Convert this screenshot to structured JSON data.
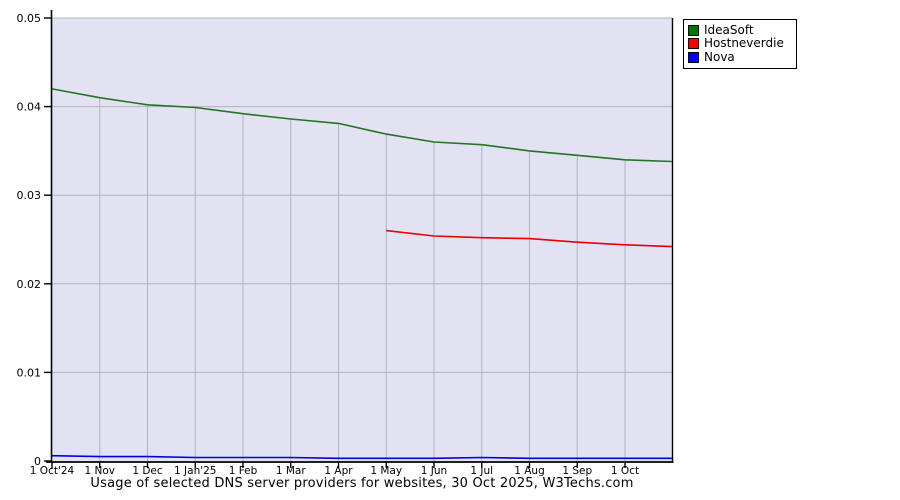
{
  "chart_data": {
    "type": "line",
    "title": "Usage of selected DNS server providers for websites, 30 Oct 2025, W3Techs.com",
    "xlabel": "",
    "ylabel": "",
    "ylim": [
      0,
      0.05
    ],
    "x_month_span": 12.98,
    "grid": true,
    "legend_position": "top-right",
    "colors": {
      "plot_bg": "#e2e2f3",
      "gridline": "#b2b2bc",
      "axis": "#000000"
    },
    "y_ticks": [
      0,
      0.01,
      0.02,
      0.03,
      0.04,
      0.05
    ],
    "y_tick_labels": [
      "0",
      "0.01",
      "0.02",
      "0.03",
      "0.04",
      "0.05"
    ],
    "x_tick_labels": [
      "1 Oct'24",
      "1 Nov",
      "1 Dec",
      "1 Jan'25",
      "1 Feb",
      "1 Mar",
      "1 Apr",
      "1 May",
      "1 Jun",
      "1 Jul",
      "1 Aug",
      "1 Sep",
      "1 Oct"
    ],
    "series": [
      {
        "name": "IdeaSoft",
        "color": "#267326",
        "swatch": "#007700",
        "x": [
          0,
          1,
          2,
          3,
          4,
          5,
          6,
          7,
          8,
          9,
          10,
          11,
          12,
          12.98
        ],
        "values": [
          0.042,
          0.041,
          0.0402,
          0.0399,
          0.0392,
          0.0386,
          0.0381,
          0.0369,
          0.036,
          0.0357,
          0.035,
          0.0345,
          0.034,
          0.0338
        ]
      },
      {
        "name": "Hostneverdie",
        "color": "#e80000",
        "swatch": "#ff0000",
        "x": [
          7,
          8,
          9,
          10,
          11,
          12,
          12.98
        ],
        "values": [
          0.026,
          0.0254,
          0.0252,
          0.0251,
          0.0247,
          0.0244,
          0.0242
        ]
      },
      {
        "name": "Nova",
        "color": "#0000dd",
        "swatch": "#0000ff",
        "x": [
          0,
          1,
          2,
          3,
          4,
          5,
          6,
          7,
          8,
          9,
          10,
          11,
          12,
          12.98
        ],
        "values": [
          0.0006,
          0.0005,
          0.0005,
          0.0004,
          0.0004,
          0.0004,
          0.0003,
          0.0003,
          0.0003,
          0.0004,
          0.0003,
          0.0003,
          0.0003,
          0.0003
        ]
      }
    ]
  }
}
